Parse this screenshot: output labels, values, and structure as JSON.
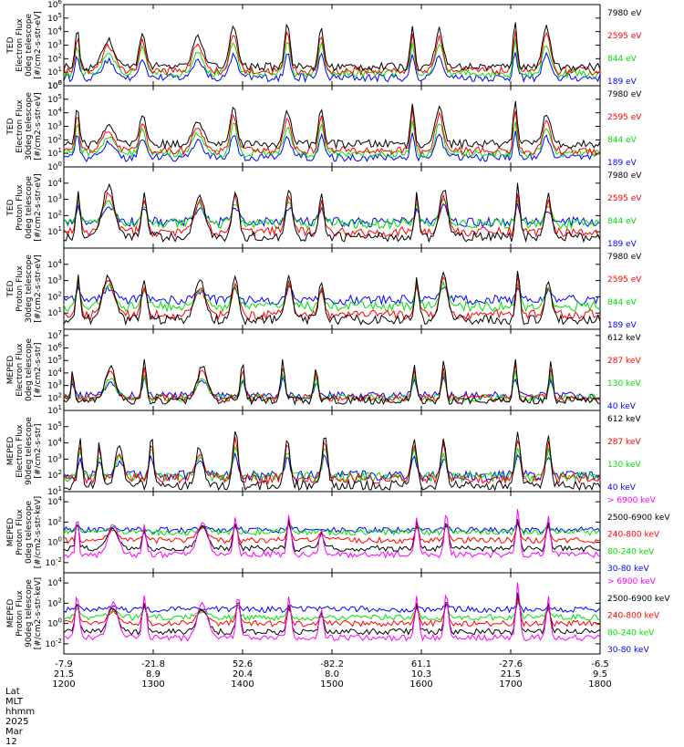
{
  "colors": {
    "black": "#000000",
    "red": "#ff0000",
    "green": "#00e000",
    "blue": "#0000ff",
    "magenta": "#ff00ff"
  },
  "chart_data": {
    "type": "line",
    "x_axis": {
      "range": [
        1200,
        1800
      ],
      "ticks": [
        1200,
        1300,
        1400,
        1500,
        1600,
        1700,
        1800
      ],
      "row_labels": [
        "Lat",
        "MLT",
        "hhmm"
      ],
      "date": "2025 Mar 12",
      "columns": [
        {
          "lat": "-7.9",
          "mlt": "21.5",
          "hhmm": "1200"
        },
        {
          "lat": "-21.8",
          "mlt": "8.9",
          "hhmm": "1300"
        },
        {
          "lat": "52.6",
          "mlt": "20.4",
          "hhmm": "1400"
        },
        {
          "lat": "-82.2",
          "mlt": "8.0",
          "hhmm": "1500"
        },
        {
          "lat": "61.1",
          "mlt": "10.3",
          "hhmm": "1600"
        },
        {
          "lat": "-27.6",
          "mlt": "21.5",
          "hhmm": "1700"
        },
        {
          "lat": "-6.5",
          "mlt": "9.5",
          "hhmm": "1800"
        }
      ]
    },
    "panels": [
      {
        "id": "ted-electron-0",
        "ylabel": [
          "TED",
          "Electron Flux",
          "0deg telescope",
          "[#/cm2-s-str-eV]"
        ],
        "ylog": [
          0,
          6
        ],
        "ticks": [
          0,
          1,
          2,
          3,
          4,
          5,
          6
        ],
        "tick_labels": [
          "10^0",
          "10^1",
          "10^2",
          "10^3",
          "10^4",
          "10^5",
          "10^6"
        ],
        "legend": [
          {
            "label": "7980 eV",
            "color": "#000000"
          },
          {
            "label": "2595 eV",
            "color": "#ff0000"
          },
          {
            "label": "844 eV",
            "color": "#00e000"
          },
          {
            "label": "189 eV",
            "color": "#0000ff"
          }
        ],
        "events": [
          [
            1215,
            4.2,
            3
          ],
          [
            1250,
            3.4,
            9
          ],
          [
            1288,
            3.8,
            5
          ],
          [
            1350,
            3.6,
            8
          ],
          [
            1390,
            4.4,
            6
          ],
          [
            1450,
            4.8,
            4
          ],
          [
            1488,
            4.3,
            4
          ],
          [
            1590,
            4.6,
            3
          ],
          [
            1620,
            4.2,
            6
          ],
          [
            1705,
            4.8,
            3
          ],
          [
            1740,
            4.3,
            6
          ]
        ],
        "base": [
          1.4,
          1.1,
          0.9,
          0.6
        ]
      },
      {
        "id": "ted-electron-30",
        "ylabel": [
          "TED",
          "Electron Flux",
          "30deg telescope",
          "[#/cm2-s-str-eV]"
        ],
        "ylog": [
          0,
          6
        ],
        "ticks": [
          0,
          1,
          2,
          3,
          4,
          5,
          6
        ],
        "tick_labels": [
          "10^0",
          "10^1",
          "10^2",
          "10^3",
          "10^4",
          "10^5",
          "10^6"
        ],
        "legend": [
          {
            "label": "7980 eV",
            "color": "#000000"
          },
          {
            "label": "2595 eV",
            "color": "#ff0000"
          },
          {
            "label": "844 eV",
            "color": "#00e000"
          },
          {
            "label": "189 eV",
            "color": "#0000ff"
          }
        ],
        "events": [
          [
            1215,
            4.6,
            3
          ],
          [
            1250,
            3.0,
            9
          ],
          [
            1288,
            3.8,
            5
          ],
          [
            1350,
            3.3,
            8
          ],
          [
            1390,
            4.5,
            5
          ],
          [
            1450,
            4.0,
            6
          ],
          [
            1488,
            4.4,
            4
          ],
          [
            1590,
            4.8,
            3
          ],
          [
            1620,
            4.4,
            6
          ],
          [
            1705,
            4.8,
            3
          ],
          [
            1740,
            4.0,
            6
          ]
        ],
        "base": [
          1.7,
          1.2,
          1.0,
          0.7
        ]
      },
      {
        "id": "ted-proton-0",
        "ylabel": [
          "TED",
          "Proton Flux",
          "0deg telescope",
          "[#/cm2-s-str-eV]"
        ],
        "ylog": [
          0,
          5
        ],
        "ticks": [
          1,
          2,
          3,
          4
        ],
        "tick_labels": [
          "10^1",
          "10^2",
          "10^3",
          "10^4"
        ],
        "legend": [
          {
            "label": "7980 eV",
            "color": "#000000"
          },
          {
            "label": "2595 eV",
            "color": "#ff0000"
          },
          {
            "label": "844 eV",
            "color": "#00e000"
          },
          {
            "label": "189 eV",
            "color": "#0000ff"
          }
        ],
        "events": [
          [
            1216,
            3.6,
            3
          ],
          [
            1250,
            3.8,
            9
          ],
          [
            1290,
            3.3,
            4
          ],
          [
            1352,
            3.3,
            8
          ],
          [
            1392,
            3.6,
            5
          ],
          [
            1452,
            3.6,
            5
          ],
          [
            1488,
            3.2,
            4
          ],
          [
            1595,
            3.6,
            3
          ],
          [
            1625,
            3.7,
            6
          ],
          [
            1708,
            3.9,
            3
          ],
          [
            1742,
            3.3,
            5
          ]
        ],
        "base": [
          0.7,
          1.0,
          1.5,
          1.6
        ]
      },
      {
        "id": "ted-proton-30",
        "ylabel": [
          "TED",
          "Proton Flux",
          "30deg telescope",
          "[#/cm2-s-str-eV]"
        ],
        "ylog": [
          0,
          5
        ],
        "ticks": [
          1,
          2,
          3,
          4
        ],
        "tick_labels": [
          "10^1",
          "10^2",
          "10^3",
          "10^4"
        ],
        "legend": [
          {
            "label": "7980 eV",
            "color": "#000000"
          },
          {
            "label": "2595 eV",
            "color": "#ff0000"
          },
          {
            "label": "844 eV",
            "color": "#00e000"
          },
          {
            "label": "189 eV",
            "color": "#0000ff"
          }
        ],
        "events": [
          [
            1216,
            3.5,
            3
          ],
          [
            1250,
            3.3,
            9
          ],
          [
            1290,
            3.1,
            4
          ],
          [
            1352,
            3.0,
            8
          ],
          [
            1392,
            3.3,
            5
          ],
          [
            1452,
            3.3,
            5
          ],
          [
            1488,
            3.0,
            4
          ],
          [
            1595,
            3.3,
            3
          ],
          [
            1625,
            3.5,
            6
          ],
          [
            1708,
            3.7,
            3
          ],
          [
            1742,
            3.0,
            5
          ]
        ],
        "base": [
          0.6,
          0.9,
          1.4,
          1.8
        ]
      },
      {
        "id": "meped-electron-0",
        "ylabel": [
          "MEPED",
          "Electron Flux",
          "0deg telescope",
          "[#/cm2-s-str]"
        ],
        "ylog": [
          1,
          7.5
        ],
        "ticks": [
          1,
          2,
          3,
          4,
          5,
          6,
          7
        ],
        "tick_labels": [
          "10^1",
          "10^2",
          "10^3",
          "10^4",
          "10^5",
          "10^6",
          "10^7"
        ],
        "legend": [
          {
            "label": "612 keV",
            "color": "#000000"
          },
          {
            "label": "287 keV",
            "color": "#ff0000"
          },
          {
            "label": "130 keV",
            "color": "#00e000"
          },
          {
            "label": "40 keV",
            "color": "#0000ff"
          }
        ],
        "events": [
          [
            1210,
            4.5,
            2
          ],
          [
            1252,
            4.5,
            8
          ],
          [
            1290,
            5.2,
            3
          ],
          [
            1355,
            4.6,
            8
          ],
          [
            1400,
            4.8,
            3
          ],
          [
            1445,
            5.2,
            3
          ],
          [
            1482,
            4.4,
            3
          ],
          [
            1592,
            4.8,
            3
          ],
          [
            1625,
            5.1,
            3
          ],
          [
            1705,
            5.2,
            3
          ],
          [
            1745,
            5.0,
            3
          ]
        ],
        "base": [
          1.8,
          2.0,
          2.0,
          2.2
        ]
      },
      {
        "id": "meped-electron-90",
        "ylabel": [
          "MEPED",
          "Electron Flux",
          "90deg telescope",
          "[#/cm2-s-str]"
        ],
        "ylog": [
          1,
          6
        ],
        "ticks": [
          1,
          2,
          3,
          4,
          5
        ],
        "tick_labels": [
          "10^1",
          "10^2",
          "10^3",
          "10^4",
          "10^5"
        ],
        "legend": [
          {
            "label": "612 keV",
            "color": "#000000"
          },
          {
            "label": "287 keV",
            "color": "#ff0000"
          },
          {
            "label": "130 keV",
            "color": "#00e000"
          },
          {
            "label": "40 keV",
            "color": "#0000ff"
          }
        ],
        "events": [
          [
            1218,
            4.4,
            3
          ],
          [
            1240,
            4.0,
            3
          ],
          [
            1262,
            3.8,
            6
          ],
          [
            1298,
            4.6,
            3
          ],
          [
            1352,
            3.8,
            6
          ],
          [
            1392,
            4.8,
            4
          ],
          [
            1450,
            4.3,
            4
          ],
          [
            1492,
            4.6,
            4
          ],
          [
            1592,
            4.4,
            4
          ],
          [
            1625,
            4.4,
            4
          ],
          [
            1708,
            4.7,
            4
          ],
          [
            1742,
            4.4,
            4
          ]
        ],
        "base": [
          1.4,
          1.8,
          1.9,
          2.0
        ]
      },
      {
        "id": "meped-proton-0",
        "ylabel": [
          "MEPED",
          "Proton Flux",
          "0deg telescope",
          "[#/cm2-s-str-keV]"
        ],
        "ylog": [
          -3,
          5
        ],
        "ticks": [
          -2,
          0,
          2,
          4
        ],
        "tick_labels": [
          "10^-2",
          "10^0",
          "10^2",
          "10^4"
        ],
        "legend": [
          {
            "label": "> 6900 keV",
            "color": "#ff00ff"
          },
          {
            "label": "2500-6900 keV",
            "color": "#000000"
          },
          {
            "label": "240-800 keV",
            "color": "#ff0000"
          },
          {
            "label": "80-240 keV",
            "color": "#00e000"
          },
          {
            "label": "30-80 keV",
            "color": "#0000ff"
          }
        ],
        "events": [
          [
            1215,
            3.4,
            2
          ],
          [
            1255,
            1.8,
            8
          ],
          [
            1290,
            1.6,
            3
          ],
          [
            1355,
            2.0,
            8
          ],
          [
            1392,
            2.6,
            3
          ],
          [
            1452,
            2.8,
            3
          ],
          [
            1488,
            1.5,
            3
          ],
          [
            1595,
            2.5,
            3
          ],
          [
            1628,
            3.0,
            3
          ],
          [
            1708,
            3.2,
            3
          ],
          [
            1742,
            2.5,
            3
          ]
        ],
        "base": [
          -1.2,
          -0.6,
          0.2,
          1.0,
          1.2
        ]
      },
      {
        "id": "meped-proton-90",
        "ylabel": [
          "MEPED",
          "Proton Flux",
          "90deg telescope",
          "[#/cm2-s-str-keV]"
        ],
        "ylog": [
          -3,
          5
        ],
        "ticks": [
          -2,
          0,
          2,
          4
        ],
        "tick_labels": [
          "10^-2",
          "10^0",
          "10^2",
          "10^4"
        ],
        "legend": [
          {
            "label": "> 6900 keV",
            "color": "#ff00ff"
          },
          {
            "label": "2500-6900 keV",
            "color": "#000000"
          },
          {
            "label": "240-800 keV",
            "color": "#ff0000"
          },
          {
            "label": "80-240 keV",
            "color": "#00e000"
          },
          {
            "label": "30-80 keV",
            "color": "#0000ff"
          }
        ],
        "events": [
          [
            1215,
            3.0,
            3
          ],
          [
            1255,
            2.0,
            8
          ],
          [
            1290,
            2.8,
            3
          ],
          [
            1355,
            2.0,
            8
          ],
          [
            1395,
            3.0,
            3
          ],
          [
            1452,
            2.6,
            3
          ],
          [
            1488,
            1.5,
            3
          ],
          [
            1595,
            2.6,
            3
          ],
          [
            1628,
            3.2,
            3
          ],
          [
            1708,
            4.0,
            3
          ],
          [
            1742,
            2.6,
            3
          ]
        ],
        "base": [
          -1.4,
          -0.8,
          0.0,
          0.6,
          1.4
        ]
      }
    ]
  }
}
